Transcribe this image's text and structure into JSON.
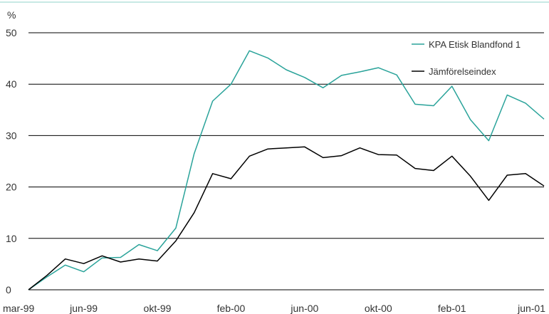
{
  "chart_data": {
    "type": "line",
    "title": "",
    "ylabel": "%",
    "xlabel": "",
    "ylim": [
      0,
      50
    ],
    "yticks": [
      0,
      10,
      20,
      30,
      40,
      50
    ],
    "grid": "horizontal",
    "legend_position": "top-right",
    "x_tick_labels": [
      "mar-99",
      "jun-99",
      "okt-99",
      "feb-00",
      "jun-00",
      "okt-00",
      "feb-01",
      "jun-01"
    ],
    "x_tick_index": [
      0,
      3,
      7,
      11,
      15,
      19,
      23,
      27
    ],
    "series": [
      {
        "name": "KPA Etisk Blandfond 1",
        "color": "#2aa39a",
        "values": [
          0,
          2.5,
          4.8,
          3.5,
          6.2,
          6.3,
          8.8,
          7.6,
          12,
          26.5,
          36.7,
          40,
          46.5,
          45.1,
          42.8,
          41.3,
          39.3,
          41.7,
          42.4,
          43.2,
          41.8,
          36.1,
          35.8,
          39.6,
          33.1,
          29,
          37.9,
          36.3,
          33.2
        ]
      },
      {
        "name": "Jämförelseindex",
        "color": "#000000",
        "values": [
          0,
          2.8,
          6,
          5.1,
          6.6,
          5.4,
          6,
          5.6,
          9.5,
          15,
          22.6,
          21.6,
          26,
          27.4,
          27.6,
          27.8,
          25.7,
          26.1,
          27.6,
          26.3,
          26.2,
          23.6,
          23.2,
          26,
          22.1,
          17.4,
          22.3,
          22.6,
          20.2
        ]
      }
    ]
  }
}
